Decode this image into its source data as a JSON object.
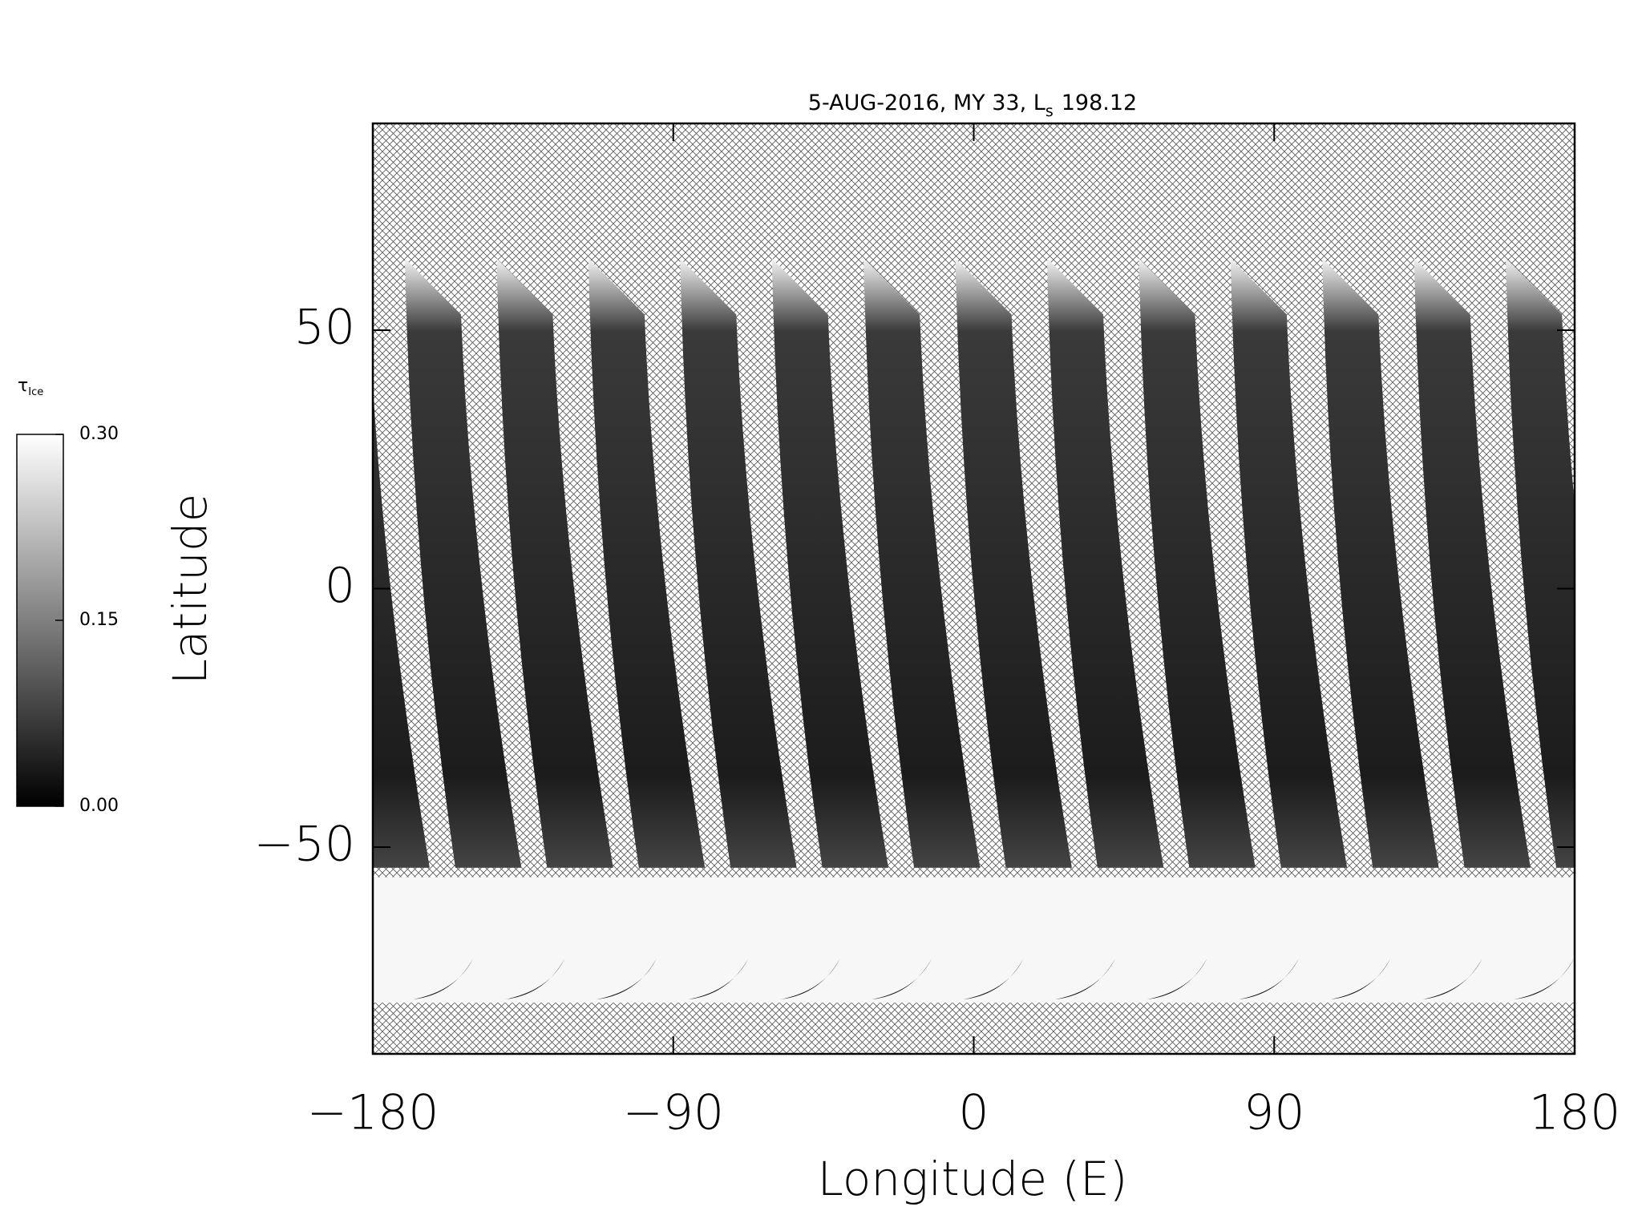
{
  "chart_data": {
    "type": "map",
    "title": "5-AUG-2016, MY 33,  L",
    "title_subscript": "s",
    "title_suffix": "198.12",
    "xlabel": "Longitude (E)",
    "ylabel": "Latitude",
    "xlim": [
      -180,
      180
    ],
    "xticks": [
      {
        "value": -180,
        "label": "−180"
      },
      {
        "value": -90,
        "label": "−90"
      },
      0,
      90,
      180
    ],
    "ylim": [
      -90,
      90
    ],
    "yticks": [
      {
        "value": -50,
        "label": "−50"
      },
      0,
      50
    ],
    "colorbar": {
      "label": "τ",
      "label_subscript": "Ice",
      "clim": [
        0,
        0.3
      ],
      "ticks": [
        {
          "value": 0,
          "label": "0.00"
        },
        {
          "value": 0.15,
          "label": "0.15"
        },
        {
          "value": 0.3,
          "label": "0.30"
        }
      ],
      "colors": [
        "#000000",
        "#ffffff"
      ]
    }
  }
}
